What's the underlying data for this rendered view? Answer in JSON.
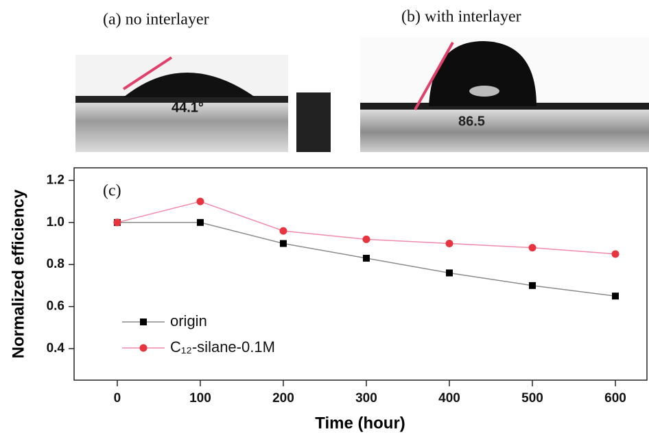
{
  "panels": [
    {
      "caption": "(a) no interlayer",
      "angle_label": "44.1°"
    },
    {
      "caption": "(b) with interlayer",
      "angle_label": "86.5"
    }
  ],
  "chart_data": {
    "type": "line",
    "label": "(c)",
    "x_label": "Time (hour)",
    "y_label": "Normalized efficiency",
    "x": [
      0,
      100,
      200,
      300,
      400,
      500,
      600
    ],
    "series": [
      {
        "name": "origin",
        "color": "#000000",
        "line_color": "#8a8a8a",
        "marker": "square",
        "values": [
          1,
          1,
          0.9,
          0.83,
          0.76,
          0.7,
          0.65
        ]
      },
      {
        "name": "C₁₂-silane-0.1M",
        "color": "#e8343f",
        "line_color": "#f08aa8",
        "marker": "circle",
        "values": [
          1,
          1.1,
          0.96,
          0.92,
          0.9,
          0.88,
          0.85
        ]
      }
    ],
    "xlim": [
      -52,
      638
    ],
    "xticks": [
      0,
      100,
      200,
      300,
      400,
      500,
      600
    ],
    "ylim": [
      0.25,
      1.26
    ],
    "yticks": [
      0.4,
      0.6,
      0.8,
      {
        "value": 1,
        "label": "1.0"
      },
      1.2
    ],
    "legend": "lower left",
    "grid": false
  }
}
